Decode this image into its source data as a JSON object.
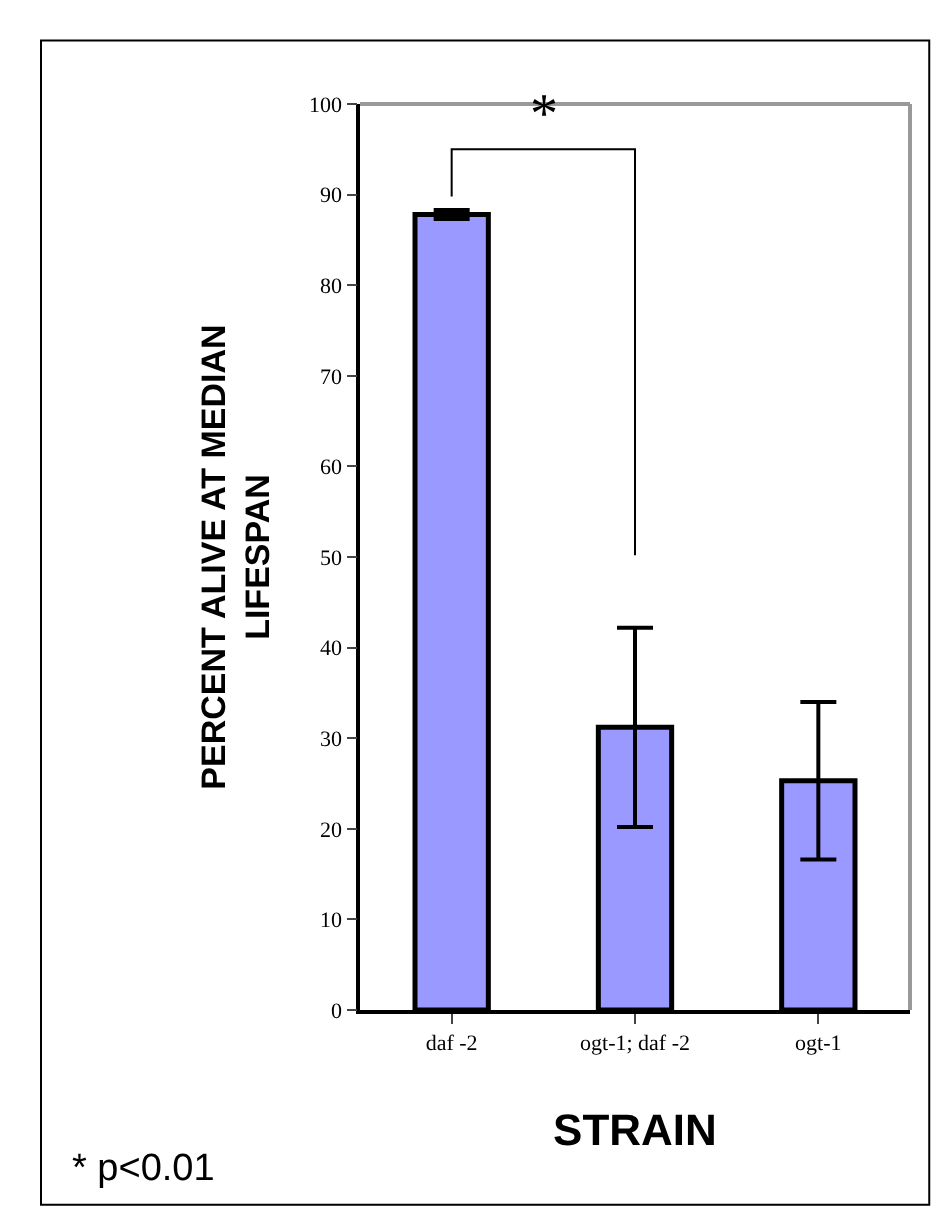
{
  "chart_data": {
    "type": "bar",
    "xlabel": "STRAIN",
    "ylabel": "PERCENT ALIVE AT MEDIAN LIFESPAN",
    "categories": [
      "daf -2",
      "ogt-1; daf -2",
      "ogt-1"
    ],
    "values": [
      87.8,
      31.2,
      25.3
    ],
    "errors": [
      0.5,
      11,
      8.7
    ],
    "color": "#9999ff",
    "ylim": [
      0,
      100
    ],
    "yticks": [
      0,
      10,
      20,
      30,
      40,
      50,
      60,
      70,
      80,
      90,
      100
    ],
    "legend": false,
    "annotations": [
      "*",
      "* p<0.01"
    ]
  }
}
